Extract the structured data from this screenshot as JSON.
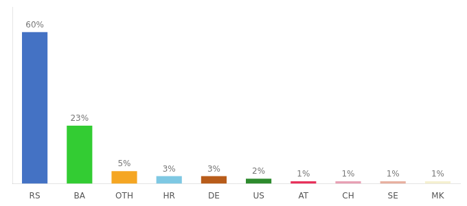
{
  "chart_data": {
    "type": "bar",
    "categories": [
      "RS",
      "BA",
      "OTH",
      "HR",
      "DE",
      "US",
      "AT",
      "CH",
      "SE",
      "MK"
    ],
    "values": [
      60,
      23,
      5,
      3,
      3,
      2,
      1,
      1,
      1,
      1
    ],
    "value_labels": [
      "60%",
      "23%",
      "5%",
      "3%",
      "3%",
      "2%",
      "1%",
      "1%",
      "1%",
      "1%"
    ],
    "data_labels": true,
    "colors": [
      "#4472c4",
      "#33cc33",
      "#f5a623",
      "#7ec8e3",
      "#b85c1a",
      "#2d8a2d",
      "#e8305a",
      "#e8a0b4",
      "#e8b0a0",
      "#f5f0d0"
    ],
    "ylim": [
      0,
      70
    ],
    "tick_labels": "x",
    "grid": false
  }
}
